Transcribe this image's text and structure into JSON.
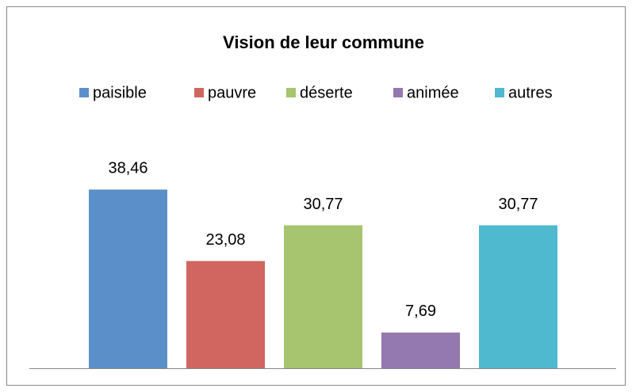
{
  "chart_data": {
    "type": "bar",
    "title": "Vision de leur commune",
    "categories": [
      null
    ],
    "series": [
      {
        "name": "paisible",
        "color": "#5b8fc9",
        "values": [
          38.46
        ],
        "value_labels": [
          "38,46"
        ]
      },
      {
        "name": "pauvre",
        "color": "#d0665f",
        "values": [
          23.08
        ],
        "value_labels": [
          "23,08"
        ]
      },
      {
        "name": "déserte",
        "color": "#a7c46f",
        "values": [
          30.77
        ],
        "value_labels": [
          "30,77"
        ]
      },
      {
        "name": "animée",
        "color": "#9478b0",
        "values": [
          7.69
        ],
        "value_labels": [
          "7,69"
        ]
      },
      {
        "name": "autres",
        "color": "#4fb9cf",
        "values": [
          30.77
        ],
        "value_labels": [
          "30,77"
        ]
      }
    ],
    "ylim": [
      0,
      45
    ],
    "legend": "top"
  }
}
